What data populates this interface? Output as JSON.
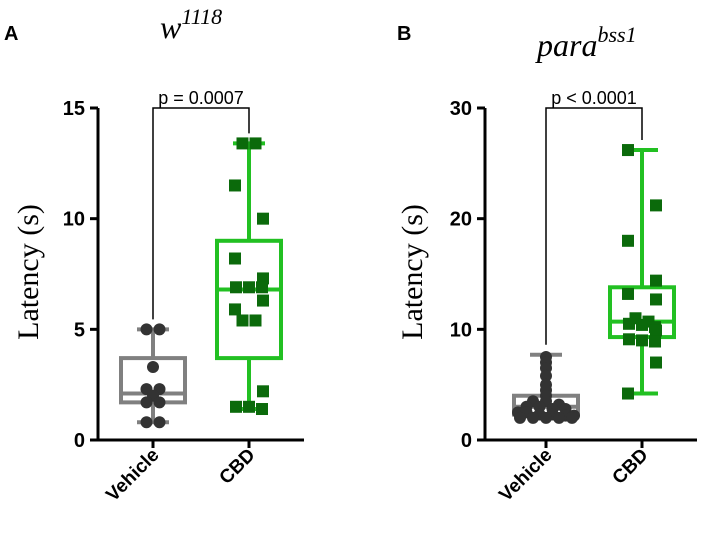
{
  "chart_data": [
    {
      "type": "box",
      "panel_label": "A",
      "title": "w",
      "title_sup": "1118",
      "ylabel": "Latency (s)",
      "ylim": [
        0,
        15
      ],
      "yticks": [
        0,
        5,
        10,
        15
      ],
      "categories": [
        "Vehicle",
        "CBD"
      ],
      "colors": {
        "Vehicle": "#808080",
        "CBD": "#22c022"
      },
      "point_colors": {
        "Vehicle": "#333333",
        "CBD": "#0b6a0b"
      },
      "series": [
        {
          "category": "Vehicle",
          "min": 0.8,
          "q1": 1.7,
          "median": 2.1,
          "q3": 3.7,
          "max": 5.0,
          "points": [
            5.0,
            5.0,
            3.3,
            2.3,
            2.3,
            2.0,
            1.7,
            1.7,
            0.8,
            0.8
          ]
        },
        {
          "category": "CBD",
          "min": 1.4,
          "q1": 3.7,
          "median": 6.8,
          "q3": 9.0,
          "max": 13.4,
          "points": [
            13.4,
            13.4,
            11.5,
            10.0,
            8.2,
            7.3,
            6.9,
            6.9,
            6.9,
            6.3,
            5.9,
            5.4,
            5.4,
            2.2,
            1.5,
            1.5,
            1.4
          ]
        }
      ],
      "comparison": {
        "text": "p = 0.0007",
        "between": [
          "Vehicle",
          "CBD"
        ],
        "y": 15.0
      }
    },
    {
      "type": "box",
      "panel_label": "B",
      "title": "para",
      "title_sup": "bss1",
      "ylabel": "Latency (s)",
      "ylim": [
        0,
        30
      ],
      "yticks": [
        0,
        10,
        20,
        30
      ],
      "categories": [
        "Vehicle",
        "CBD"
      ],
      "colors": {
        "Vehicle": "#808080",
        "CBD": "#22c022"
      },
      "point_colors": {
        "Vehicle": "#333333",
        "CBD": "#0b6a0b"
      },
      "series": [
        {
          "category": "Vehicle",
          "min": 2.0,
          "q1": 2.3,
          "median": 3.0,
          "q3": 4.0,
          "max": 7.7,
          "points": [
            7.5,
            7.0,
            6.5,
            5.8,
            5.0,
            4.5,
            4.0,
            3.5,
            3.5,
            3.2,
            3.0,
            3.0,
            2.8,
            2.8,
            2.5,
            2.5,
            2.3,
            2.3,
            2.2,
            2.2,
            2.0,
            2.0,
            2.0,
            2.0,
            2.0
          ]
        },
        {
          "category": "CBD",
          "min": 4.2,
          "q1": 9.3,
          "median": 10.7,
          "q3": 13.8,
          "max": 26.2,
          "points": [
            26.2,
            21.2,
            18.0,
            14.4,
            13.2,
            12.7,
            11.0,
            10.7,
            10.5,
            10.4,
            10.2,
            9.9,
            9.1,
            9.0,
            8.9,
            7.0,
            4.2
          ]
        }
      ],
      "comparison": {
        "text": "p < 0.0001",
        "between": [
          "Vehicle",
          "CBD"
        ],
        "y": 30.0
      }
    }
  ]
}
